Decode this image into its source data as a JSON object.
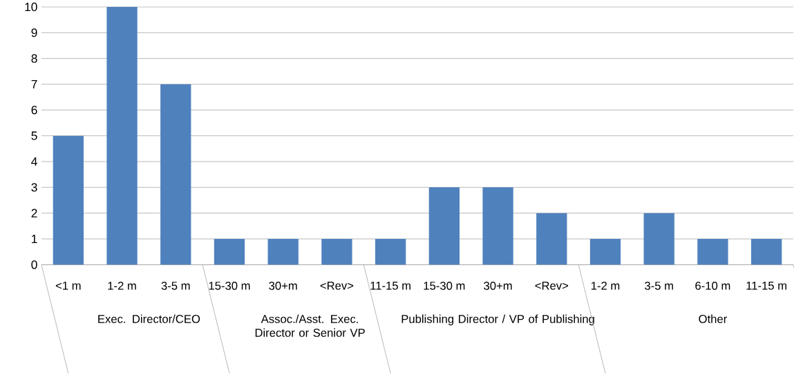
{
  "chart_data": {
    "type": "bar",
    "categories": [
      "<1 m",
      "1-2 m",
      "3-5 m",
      "15-30 m",
      "30+m",
      "<Rev>",
      "11-15 m",
      "15-30 m",
      "30+m",
      "<Rev>",
      "1-2 m",
      "3-5 m",
      "6-10 m",
      "11-15 m"
    ],
    "values": [
      5,
      10,
      7,
      1,
      1,
      1,
      1,
      3,
      3,
      2,
      1,
      2,
      1,
      1
    ],
    "color": "#4f81bd",
    "ylim": [
      0,
      10
    ],
    "yticks": [
      0,
      1,
      2,
      3,
      4,
      5,
      6,
      7,
      8,
      9,
      10
    ],
    "grid": "y",
    "annotations": [
      "Exec. Director/CEO",
      "Assoc./Asst. Exec. Director or Senior VP",
      "Publishing Director / VP of Publishing",
      "Other"
    ]
  }
}
